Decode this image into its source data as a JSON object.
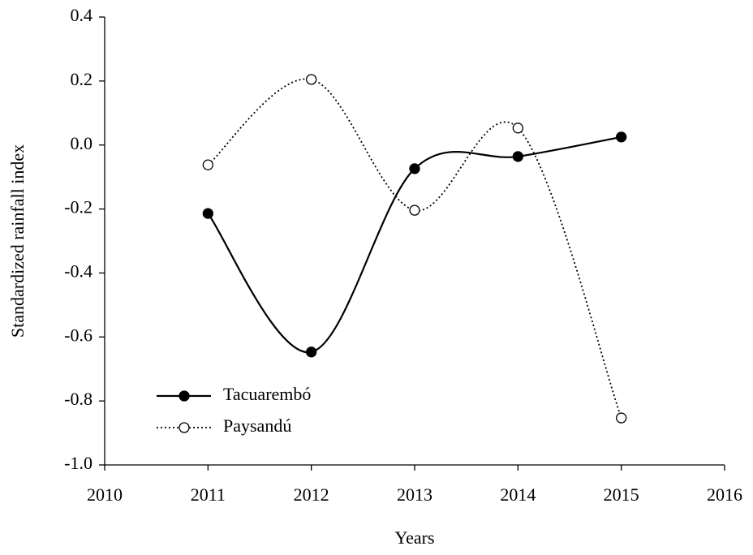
{
  "chart_data": {
    "type": "line",
    "x_label": "Years",
    "y_label": "Standardized rainfall index",
    "x": [
      2011,
      2012,
      2013,
      2014,
      2015
    ],
    "series": [
      {
        "name": "Tacuarembó",
        "color": "#000000",
        "line_style": "solid",
        "marker_fill": "#000000",
        "values": [
          -0.214,
          -0.647,
          -0.074,
          -0.036,
          0.025
        ]
      },
      {
        "name": "Paysandú",
        "color": "#000000",
        "line_style": "dotted",
        "marker_fill": "#ffffff",
        "values": [
          -0.062,
          0.205,
          -0.204,
          0.053,
          -0.853
        ]
      }
    ],
    "xlim": [
      2010,
      2016
    ],
    "xticks": [
      2010,
      2011,
      2012,
      2013,
      2014,
      2015,
      2016
    ],
    "ylim": [
      -1.0,
      0.4
    ],
    "yticks": [
      {
        "value": -1.0,
        "label": "-1.0"
      },
      -0.8,
      -0.6,
      -0.4,
      -0.2,
      {
        "value": 0,
        "label": "0.0"
      },
      0.2,
      0.4
    ],
    "smooth": true,
    "legend_position": "lower-left"
  }
}
